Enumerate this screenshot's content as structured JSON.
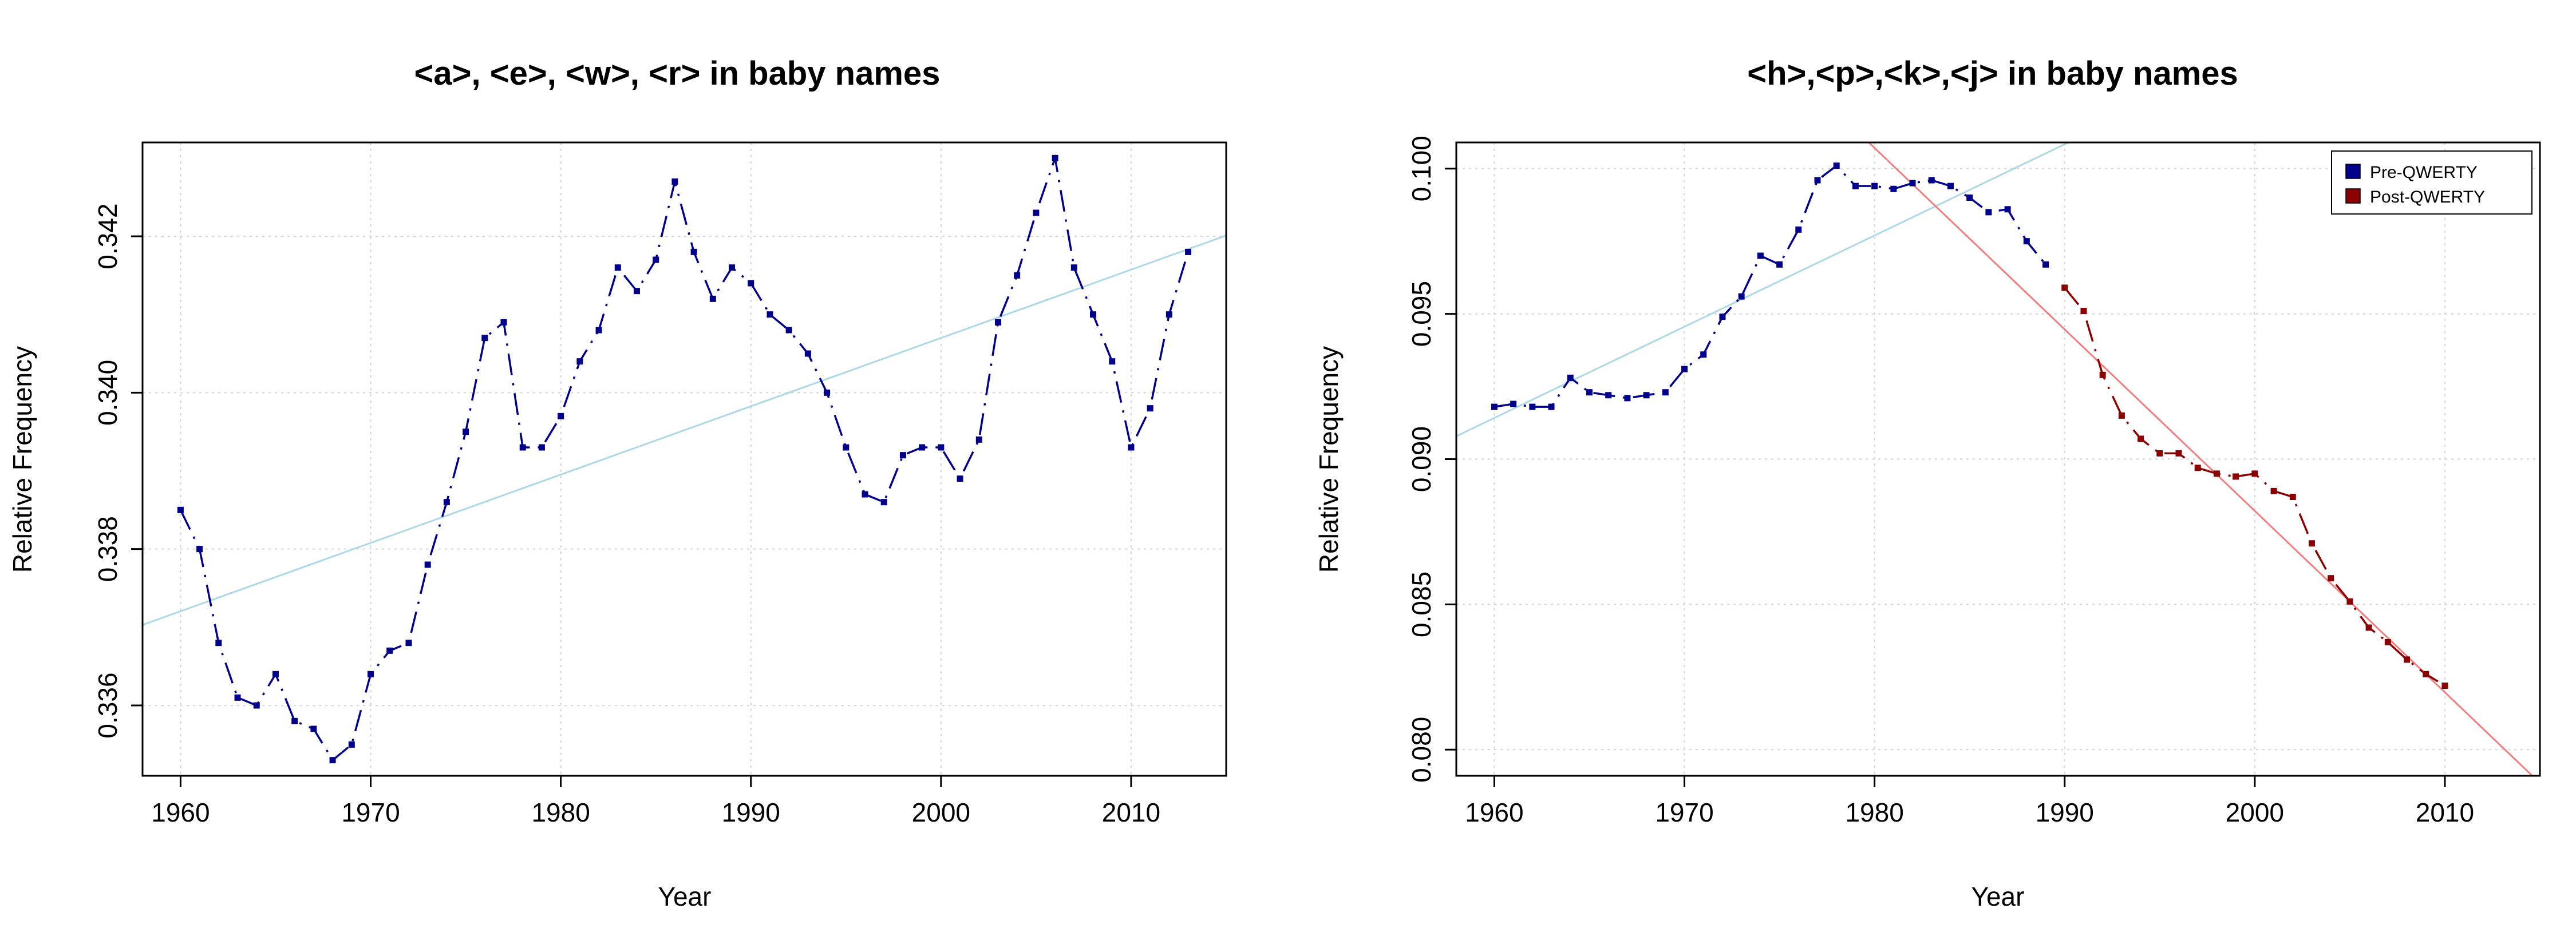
{
  "chart_data": [
    {
      "type": "line",
      "title": "<a>, <e>, <w>, <r> in baby names",
      "xlabel": "Year",
      "ylabel": "Relative Frequency",
      "xlim": [
        1958,
        2015
      ],
      "ylim": [
        0.3351,
        0.3432
      ],
      "xticks": [
        1960,
        1970,
        1980,
        1990,
        2000,
        2010
      ],
      "xtick_labels": [
        "1960",
        "1970",
        "1980",
        "1990",
        "2000",
        "2010"
      ],
      "yticks": [
        0.336,
        0.338,
        0.34,
        0.342
      ],
      "ytick_labels": [
        "0.336",
        "0.338",
        "0.340",
        "0.342"
      ],
      "grid": true,
      "legend": null,
      "series": [
        {
          "color": "#00008B",
          "x": [
            1960,
            1961,
            1962,
            1963,
            1964,
            1965,
            1966,
            1967,
            1968,
            1969,
            1970,
            1971,
            1972,
            1973,
            1974,
            1975,
            1976,
            1977,
            1978,
            1979,
            1980,
            1981,
            1982,
            1983,
            1984,
            1985,
            1986,
            1987,
            1988,
            1989,
            1990,
            1991,
            1992,
            1993,
            1994,
            1995,
            1996,
            1997,
            1998,
            1999,
            2000,
            2001,
            2002,
            2003,
            2004,
            2005,
            2006,
            2007,
            2008,
            2009,
            2010,
            2011,
            2012,
            2013
          ],
          "y": [
            0.3385,
            0.338,
            0.3368,
            0.3361,
            0.336,
            0.3364,
            0.3358,
            0.3357,
            0.3353,
            0.3355,
            0.3364,
            0.3367,
            0.3368,
            0.3378,
            0.3386,
            0.3395,
            0.3407,
            0.3409,
            0.3393,
            0.3393,
            0.3397,
            0.3404,
            0.3408,
            0.3416,
            0.3413,
            0.3417,
            0.3427,
            0.3418,
            0.3412,
            0.3416,
            0.3414,
            0.341,
            0.3408,
            0.3405,
            0.34,
            0.3393,
            0.3387,
            0.3386,
            0.3392,
            0.3393,
            0.3393,
            0.3389,
            0.3394,
            0.3409,
            0.3415,
            0.3423,
            0.343,
            0.3416,
            0.341,
            0.3404,
            0.3393,
            0.3398,
            0.341,
            0.3418
          ]
        }
      ],
      "fit_lines": [
        {
          "color": "#ADD8E6",
          "x": [
            1958,
            2015
          ],
          "y": [
            0.33703,
            0.34201
          ]
        }
      ]
    },
    {
      "type": "line",
      "title": "<h>,<p>,<k>,<j> in baby names",
      "xlabel": "Year",
      "ylabel": "Relative Frequency",
      "xlim": [
        1958,
        2015
      ],
      "ylim": [
        0.0791,
        0.1009
      ],
      "xticks": [
        1960,
        1970,
        1980,
        1990,
        2000,
        2010
      ],
      "xtick_labels": [
        "1960",
        "1970",
        "1980",
        "1990",
        "2000",
        "2010"
      ],
      "yticks": [
        0.08,
        0.085,
        0.09,
        0.095,
        0.1
      ],
      "ytick_labels": [
        "0.080",
        "0.085",
        "0.090",
        "0.095",
        "0.100"
      ],
      "grid": true,
      "legend": {
        "placement": "top-right",
        "entries": [
          {
            "label": "Pre-QWERTY",
            "color": "#00008B"
          },
          {
            "label": "Post-QWERTY",
            "color": "#8B0000"
          }
        ]
      },
      "series": [
        {
          "name": "Pre-QWERTY",
          "color": "#00008B",
          "x": [
            1960,
            1961,
            1962,
            1963,
            1964,
            1965,
            1966,
            1967,
            1968,
            1969,
            1970,
            1971,
            1972,
            1973,
            1974,
            1975,
            1976,
            1977,
            1978,
            1979,
            1980,
            1981,
            1982,
            1983,
            1984,
            1985,
            1986,
            1987,
            1988,
            1989
          ],
          "y": [
            0.0918,
            0.0919,
            0.0918,
            0.0918,
            0.0928,
            0.0923,
            0.0922,
            0.0921,
            0.0922,
            0.0923,
            0.0931,
            0.0936,
            0.0949,
            0.0956,
            0.097,
            0.0967,
            0.0979,
            0.0996,
            0.1001,
            0.0994,
            0.0994,
            0.0993,
            0.0995,
            0.0996,
            0.0994,
            0.099,
            0.0985,
            0.0986,
            0.0975,
            0.0967
          ]
        },
        {
          "name": "Post-QWERTY",
          "color": "#8B0000",
          "x": [
            1990,
            1991,
            1992,
            1993,
            1994,
            1995,
            1996,
            1997,
            1998,
            1999,
            2000,
            2001,
            2002,
            2003,
            2004,
            2005,
            2006,
            2007,
            2008,
            2009,
            2010
          ],
          "y": [
            0.0959,
            0.0951,
            0.0929,
            0.0915,
            0.0907,
            0.0902,
            0.0902,
            0.0897,
            0.0895,
            0.0894,
            0.0895,
            0.0889,
            0.0887,
            0.0871,
            0.0859,
            0.0851,
            0.0842,
            0.0837,
            0.0831,
            0.0826,
            0.0822
          ]
        }
      ],
      "fit_lines": [
        {
          "color": "#ADD8E6",
          "x": [
            1958,
            1990.2
          ],
          "y": [
            0.09079,
            0.1009
          ]
        },
        {
          "color": "#F08080",
          "x": [
            1979.7,
            2014.6
          ],
          "y": [
            0.1009,
            0.0791
          ]
        }
      ]
    }
  ]
}
